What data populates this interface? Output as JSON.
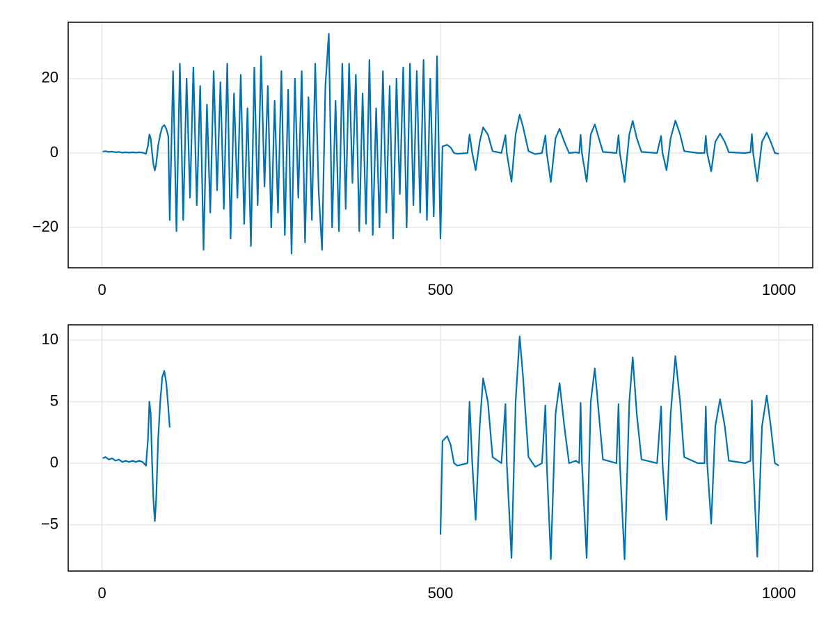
{
  "chart_data": [
    {
      "type": "line",
      "color": "#0072b2",
      "grid": true,
      "xlim": [
        -49.95,
        1049.95
      ],
      "ylim": [
        -30.8,
        35.1
      ],
      "xticks": [
        0,
        500,
        1000
      ],
      "yticks": [
        {
          "value": -20,
          "label": "−20"
        },
        0,
        20
      ],
      "x": [
        1,
        5,
        10,
        15,
        20,
        25,
        30,
        35,
        40,
        45,
        50,
        55,
        60,
        65,
        68,
        70,
        72,
        74,
        76,
        78,
        80,
        83,
        86,
        89,
        92,
        95,
        98,
        100,
        105,
        110,
        115,
        120,
        125,
        130,
        135,
        140,
        145,
        150,
        155,
        160,
        165,
        170,
        175,
        180,
        185,
        190,
        195,
        200,
        205,
        210,
        215,
        220,
        225,
        230,
        235,
        240,
        245,
        250,
        255,
        260,
        265,
        270,
        275,
        280,
        285,
        290,
        295,
        300,
        305,
        310,
        315,
        320,
        325,
        330,
        335,
        340,
        345,
        350,
        355,
        360,
        365,
        370,
        375,
        380,
        385,
        390,
        395,
        400,
        405,
        410,
        415,
        420,
        425,
        430,
        435,
        440,
        445,
        450,
        455,
        460,
        465,
        470,
        475,
        480,
        485,
        490,
        495,
        500,
        503,
        510,
        515,
        520,
        525,
        540,
        543,
        547,
        552,
        558,
        563,
        570,
        577,
        590,
        596,
        598,
        605,
        611,
        617,
        622,
        630,
        640,
        650,
        655,
        657,
        663,
        670,
        676,
        683,
        690,
        700,
        705,
        707,
        709,
        716,
        722,
        728,
        734,
        740,
        760,
        763,
        765,
        772,
        779,
        784,
        790,
        797,
        820,
        826,
        828,
        834,
        840,
        847,
        854,
        860,
        880,
        890,
        892,
        894,
        900,
        906,
        913,
        920,
        926,
        950,
        958,
        960,
        962,
        968,
        975,
        982,
        988,
        994,
        1000
      ],
      "values": [
        0.4,
        0.5,
        0.3,
        0.4,
        0.2,
        0.3,
        0.1,
        0.2,
        0.1,
        0.2,
        0.1,
        0.2,
        0.1,
        -0.2,
        2,
        5,
        4,
        0,
        -3,
        -4.7,
        -3,
        2,
        5,
        7,
        7.5,
        6.5,
        4.5,
        -18,
        22,
        -21,
        24,
        -18,
        20,
        -12,
        23,
        -14,
        18,
        -26,
        13,
        -16,
        22,
        -10,
        19,
        -15,
        24,
        -23,
        16,
        -12,
        21,
        -19,
        12,
        -25,
        23,
        -14,
        26,
        -9,
        18,
        -20,
        14,
        -16,
        22,
        -22,
        17,
        -27,
        20,
        -12,
        22,
        -24,
        15,
        -18,
        24,
        -10,
        -26,
        18,
        32,
        -20,
        14,
        -21,
        24,
        -15,
        24,
        -8,
        21,
        -21,
        16,
        -19,
        25,
        -22,
        12,
        -20,
        22,
        -16,
        18,
        -23,
        20,
        -11,
        23,
        -20,
        24,
        -14,
        22,
        -16,
        25,
        -18,
        20,
        -17,
        26,
        -23,
        1.8,
        2.2,
        1.5,
        0,
        -0.2,
        0,
        5,
        0,
        -4.6,
        3,
        6.9,
        5,
        0.5,
        0,
        4.8,
        0,
        -7.7,
        5,
        10.3,
        7,
        0.5,
        -0.3,
        0,
        4.7,
        0,
        -7.8,
        4,
        6.5,
        3,
        0,
        0.2,
        0,
        4.9,
        0,
        -7.7,
        5,
        7.7,
        4,
        0.3,
        0,
        4.8,
        0,
        -7.8,
        5,
        8.6,
        4,
        0.3,
        0,
        4.6,
        0,
        -4.6,
        4,
        8.7,
        5,
        0.5,
        0,
        0,
        4.6,
        0,
        -4.9,
        3,
        5.2,
        3,
        0.2,
        0,
        0.2,
        5.1,
        0,
        -7.6,
        3,
        5.5,
        3,
        0,
        -0.2
      ]
    },
    {
      "type": "line",
      "color": "#0072b2",
      "grid": true,
      "xlim": [
        -49.95,
        1049.95
      ],
      "ylim": [
        -8.76,
        11.24
      ],
      "xticks": [
        0,
        500,
        1000
      ],
      "yticks": [
        {
          "value": -5,
          "label": "−5"
        },
        0,
        5,
        10
      ],
      "x": [
        1,
        5,
        10,
        15,
        20,
        25,
        30,
        35,
        40,
        45,
        50,
        55,
        60,
        65,
        68,
        70,
        72,
        74,
        76,
        78,
        80,
        83,
        86,
        89,
        92,
        95,
        98,
        100,
        101,
        500,
        503,
        510,
        515,
        520,
        525,
        540,
        543,
        547,
        552,
        558,
        563,
        570,
        577,
        590,
        596,
        598,
        605,
        611,
        617,
        622,
        630,
        640,
        650,
        655,
        657,
        663,
        670,
        676,
        683,
        690,
        700,
        705,
        707,
        709,
        716,
        722,
        728,
        734,
        740,
        760,
        763,
        765,
        772,
        779,
        784,
        790,
        797,
        820,
        826,
        828,
        834,
        840,
        847,
        854,
        860,
        880,
        890,
        892,
        894,
        900,
        906,
        913,
        920,
        926,
        950,
        958,
        960,
        962,
        968,
        975,
        982,
        988,
        994,
        1000
      ],
      "values": [
        0.4,
        0.5,
        0.3,
        0.4,
        0.2,
        0.3,
        0.1,
        0.2,
        0.1,
        0.2,
        0.1,
        0.2,
        0.1,
        -0.2,
        2,
        5,
        4,
        0,
        -3,
        -4.7,
        -3,
        2,
        5,
        7,
        7.5,
        6.5,
        4.5,
        2.9,
        null,
        -5.8,
        1.8,
        2.2,
        1.5,
        0,
        -0.2,
        0,
        5,
        0,
        -4.6,
        3,
        6.9,
        5,
        0.5,
        0,
        4.8,
        0,
        -7.7,
        5,
        10.3,
        7,
        0.5,
        -0.3,
        0,
        4.7,
        0,
        -7.8,
        4,
        6.5,
        3,
        0,
        0.2,
        0,
        4.9,
        0,
        -7.7,
        5,
        7.7,
        4,
        0.3,
        0,
        4.8,
        0,
        -7.8,
        5,
        8.6,
        4,
        0.3,
        0,
        4.6,
        0,
        -4.6,
        4,
        8.7,
        5,
        0.5,
        0,
        0,
        4.6,
        0,
        -4.9,
        3,
        5.2,
        3,
        0.2,
        0,
        0.2,
        5.1,
        0,
        -7.6,
        3,
        5.5,
        3,
        0,
        -0.2
      ]
    }
  ]
}
